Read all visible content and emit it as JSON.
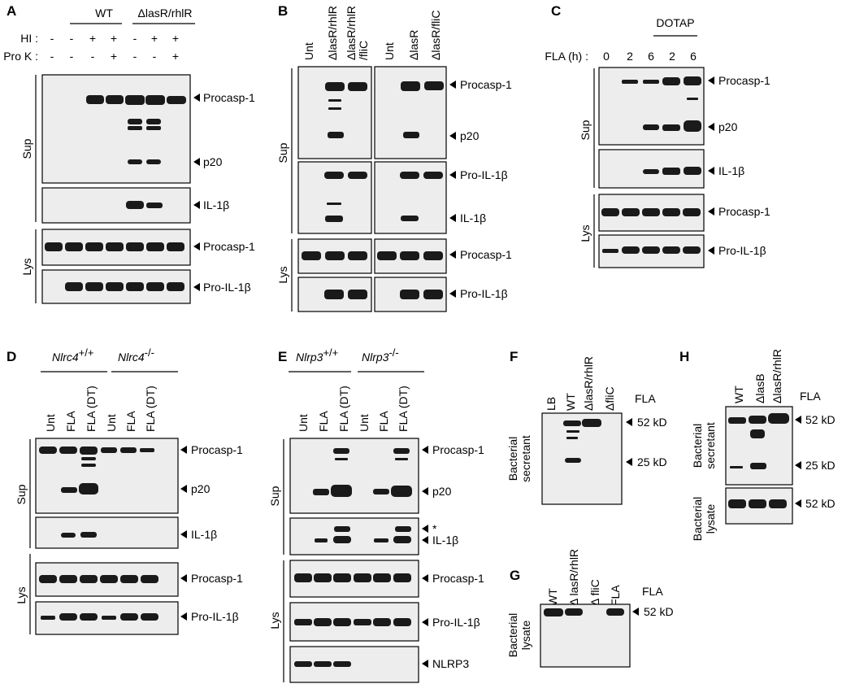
{
  "figure": {
    "panels": {
      "A": {
        "letter": "A",
        "groups": [
          "WT",
          "ΔlasR/rhlR"
        ],
        "rows": [
          {
            "label": "HI :",
            "values": [
              "-",
              "-",
              "+",
              "+",
              "-",
              "+",
              "+"
            ]
          },
          {
            "label": "Pro K :",
            "values": [
              "-",
              "-",
              "-",
              "+",
              "-",
              "-",
              "+"
            ]
          }
        ],
        "bracket_sup": "Sup",
        "bracket_lys": "Lys",
        "blots": [
          "Procasp-1",
          "p20",
          "IL-1β",
          "Procasp-1",
          "Pro-IL-1β"
        ]
      },
      "B": {
        "letter": "B",
        "lanes_left": [
          "Unt",
          "ΔlasR/rhlR",
          "ΔlasR/rhlR",
          "/fliC"
        ],
        "lanes_right": [
          "Unt",
          "ΔlasR",
          "ΔlasR/fliC"
        ],
        "bracket_sup": "Sup",
        "bracket_lys": "Lys",
        "blots": [
          "Procasp-1",
          "p20",
          "Pro-IL-1β",
          "IL-1β",
          "Procasp-1",
          "Pro-IL-1β"
        ]
      },
      "C": {
        "letter": "C",
        "group": "DOTAP",
        "row_label": "FLA (h) :",
        "times": [
          "0",
          "2",
          "6",
          "2",
          "6"
        ],
        "bracket_sup": "Sup",
        "bracket_lys": "Lys",
        "blots": [
          "Procasp-1",
          "p20",
          "IL-1β",
          "Procasp-1",
          "Pro-IL-1β"
        ]
      },
      "D": {
        "letter": "D",
        "gene": "Nlrc4",
        "genotypes": [
          "+/+",
          "-/-"
        ],
        "lanes": [
          "Unt",
          "FLA",
          "FLA (DT)",
          "Unt",
          "FLA",
          "FLA (DT)"
        ],
        "bracket_sup": "Sup",
        "bracket_lys": "Lys",
        "blots": [
          "Procasp-1",
          "p20",
          "IL-1β",
          "Procasp-1",
          "Pro-IL-1β"
        ]
      },
      "E": {
        "letter": "E",
        "gene": "Nlrp3",
        "genotypes": [
          "+/+",
          "-/-"
        ],
        "lanes": [
          "Unt",
          "FLA",
          "FLA (DT)",
          "Unt",
          "FLA",
          "FLA (DT)"
        ],
        "bracket_sup": "Sup",
        "bracket_lys": "Lys",
        "blots": [
          "Procasp-1",
          "p20",
          "*",
          "IL-1β",
          "Procasp-1",
          "Pro-IL-1β",
          "NLRP3"
        ]
      },
      "F": {
        "letter": "F",
        "lanes": [
          "LB",
          "WT",
          "ΔlasR/rhlR",
          "ΔfliC"
        ],
        "title": "FLA",
        "side": [
          "Bacterial",
          "secretant"
        ],
        "markers": [
          "52 kD",
          "25 kD"
        ]
      },
      "G": {
        "letter": "G",
        "lanes": [
          "WT",
          "Δ lasR/rhlR",
          "Δ fliC",
          "FLA"
        ],
        "title": "FLA",
        "side": [
          "Bacterial",
          "lysate"
        ],
        "markers": [
          "52 kD"
        ]
      },
      "H": {
        "letter": "H",
        "lanes": [
          "WT",
          "ΔlasB",
          "ΔlasR/rhlR"
        ],
        "title": "FLA",
        "side_sec": [
          "Bacterial",
          "secretant"
        ],
        "side_lys": [
          "Bacterial",
          "lysate"
        ],
        "markers": [
          "52 kD",
          "25 kD",
          "52 kD"
        ]
      }
    }
  }
}
